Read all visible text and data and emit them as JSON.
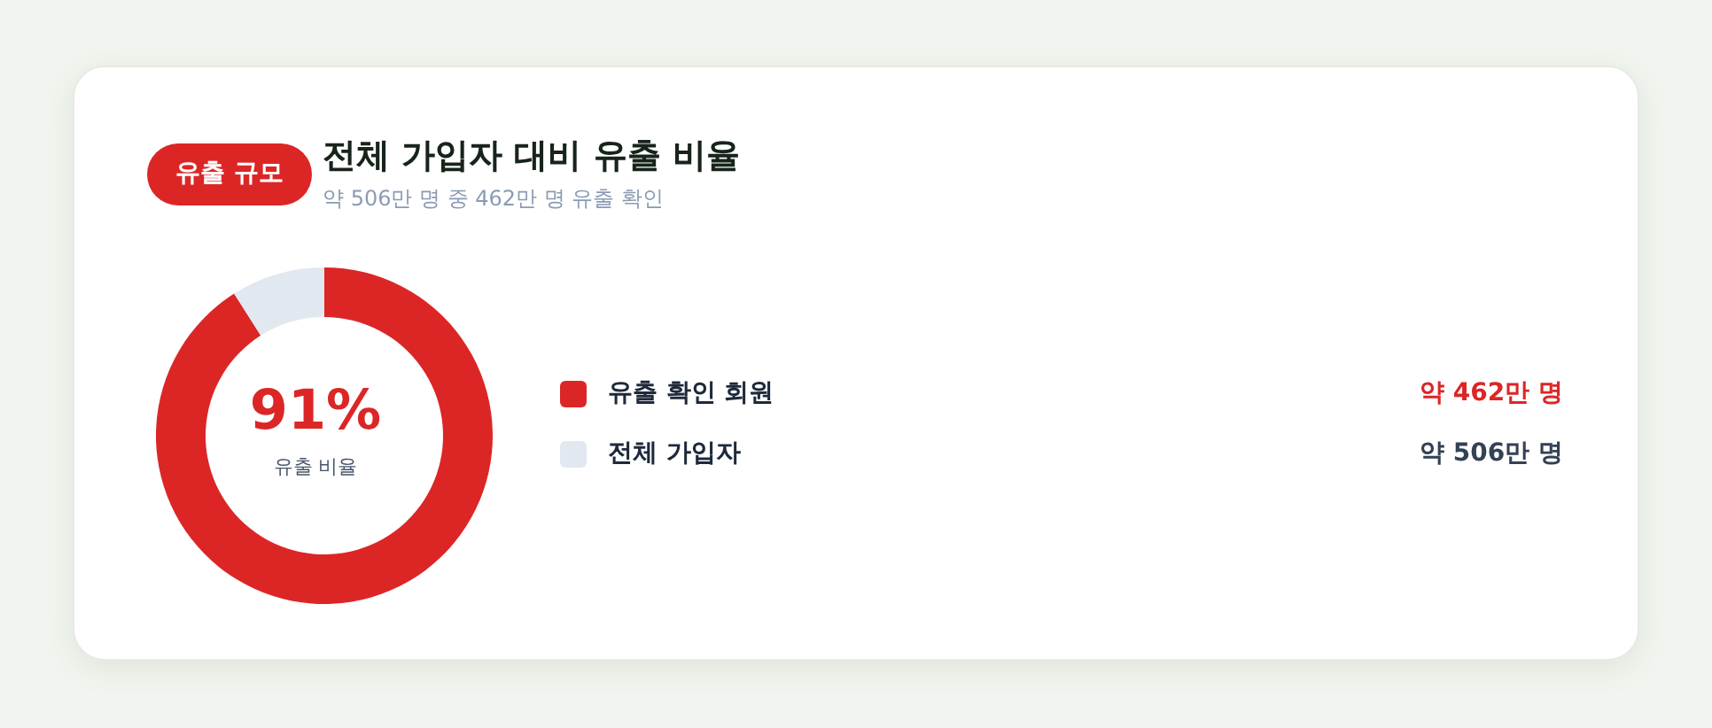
{
  "chart_data": {
    "type": "donut",
    "title": "전체 가입자 대비 유출 비율",
    "subtitle": "약 506만 명 중 462만 명 유출 확인",
    "categories": [
      "유출 확인 회원",
      "전체 가입자"
    ],
    "values": [
      91,
      9
    ],
    "colors": [
      "#dc2626",
      "#e2e8f0"
    ],
    "value_labels": [
      "91%",
      null
    ],
    "legend": "right",
    "annotations": [
      "유출 규모",
      "유출 비율",
      "약 462만 명",
      "약 506만 명"
    ]
  }
}
